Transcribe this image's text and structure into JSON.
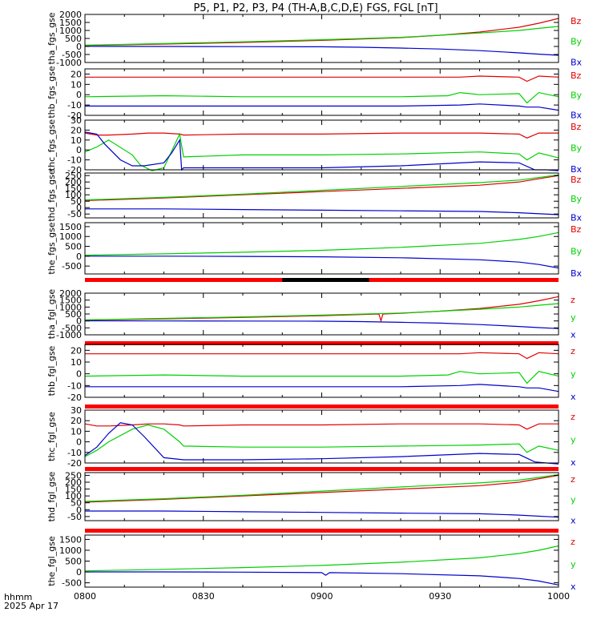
{
  "title": "P5, P1, P2, P3, P4 (TH-A,B,C,D,E) FGS, FGL [nT]",
  "x_axis": {
    "label_line1": "hhmm",
    "label_line2": "2025 Apr 17",
    "tick_labels": [
      "0800",
      "0830",
      "0900",
      "0930",
      "1000"
    ],
    "range_minutes": [
      0,
      120
    ]
  },
  "colors": {
    "z": "#e00000",
    "y": "#00d000",
    "x": "#0000cc",
    "flag": "#ff0000",
    "flag_dark": "#000000",
    "frame": "#000000"
  },
  "chart_data": [
    {
      "type": "line",
      "ylabel": "tha_fgs_gse",
      "ylim": [
        -1000,
        2000
      ],
      "yticks": [
        2000,
        1500,
        1000,
        500,
        0,
        -500,
        -1000
      ],
      "legend": [
        "Bz",
        "By",
        "Bx"
      ],
      "series": [
        {
          "name": "Bz",
          "x": [
            0,
            20,
            40,
            60,
            80,
            90,
            100,
            110,
            115,
            120
          ],
          "y": [
            60,
            150,
            250,
            380,
            550,
            700,
            900,
            1200,
            1450,
            1750
          ]
        },
        {
          "name": "By",
          "x": [
            0,
            20,
            40,
            60,
            80,
            90,
            100,
            110,
            115,
            120
          ],
          "y": [
            80,
            180,
            290,
            420,
            570,
            700,
            840,
            1000,
            1130,
            1250
          ]
        },
        {
          "name": "Bx",
          "x": [
            0,
            20,
            40,
            60,
            70,
            80,
            90,
            100,
            110,
            115,
            120
          ],
          "y": [
            10,
            0,
            -10,
            -20,
            -50,
            -100,
            -160,
            -260,
            -400,
            -480,
            -550
          ]
        }
      ]
    },
    {
      "type": "line",
      "ylabel": "thb_fgs_gse",
      "ylim": [
        -20,
        25
      ],
      "yticks": [
        20,
        10,
        0,
        -10,
        -20
      ],
      "legend": [
        "Bz",
        "By",
        "Bx"
      ],
      "series": [
        {
          "name": "Bz",
          "x": [
            0,
            20,
            40,
            60,
            80,
            95,
            100,
            110,
            112,
            115,
            120
          ],
          "y": [
            17,
            17,
            17,
            17,
            17,
            17,
            18,
            17,
            13,
            18,
            17
          ]
        },
        {
          "name": "By",
          "x": [
            0,
            20,
            40,
            60,
            80,
            92,
            95,
            100,
            110,
            112,
            115,
            120
          ],
          "y": [
            -2,
            -1,
            -2,
            -2,
            -2,
            -1,
            2,
            0,
            1,
            -8,
            2,
            -2
          ]
        },
        {
          "name": "Bx",
          "x": [
            0,
            20,
            40,
            60,
            80,
            95,
            100,
            110,
            112,
            115,
            120
          ],
          "y": [
            -11,
            -11,
            -11,
            -11,
            -11,
            -10,
            -9,
            -11,
            -12,
            -12,
            -15
          ]
        }
      ]
    },
    {
      "type": "line",
      "ylabel": "thc_fgs_gse",
      "ylim": [
        -20,
        30
      ],
      "yticks": [
        30,
        20,
        10,
        0,
        -10,
        -20
      ],
      "legend": [
        "Bz",
        "By",
        "Bx"
      ],
      "series": [
        {
          "name": "Bz",
          "x": [
            0,
            3,
            6,
            12,
            16,
            20,
            24,
            25,
            40,
            60,
            80,
            100,
            110,
            112,
            115,
            120
          ],
          "y": [
            17,
            15,
            15,
            16,
            17,
            17,
            16,
            15,
            16,
            16,
            17,
            17,
            16,
            12,
            17,
            17
          ]
        },
        {
          "name": "By",
          "x": [
            0,
            3,
            6,
            12,
            14,
            17,
            20,
            24,
            25,
            40,
            60,
            80,
            100,
            110,
            112,
            115,
            120
          ],
          "y": [
            -2,
            3,
            10,
            -5,
            -15,
            -21,
            -18,
            16,
            -7,
            -5,
            -5,
            -4,
            -2,
            -4,
            -10,
            -3,
            -8
          ]
        },
        {
          "name": "Bx",
          "x": [
            0,
            3,
            5,
            9,
            12,
            15,
            20,
            22,
            24,
            24.5,
            25,
            40,
            60,
            80,
            100,
            110,
            114,
            117,
            120
          ],
          "y": [
            18,
            16,
            6,
            -10,
            -16,
            -16,
            -13,
            -3,
            10,
            -20,
            -18,
            -18,
            -18,
            -16,
            -12,
            -13,
            -20,
            -20,
            -21
          ]
        }
      ]
    },
    {
      "type": "line",
      "ylabel": "thd_fgs_gse",
      "ylim": [
        -80,
        270
      ],
      "yticks": [
        250,
        200,
        150,
        100,
        50,
        0,
        -50
      ],
      "legend": [
        "Bz",
        "By",
        "Bx"
      ],
      "series": [
        {
          "name": "Bz",
          "x": [
            0,
            20,
            40,
            60,
            80,
            100,
            110,
            120
          ],
          "y": [
            55,
            75,
            100,
            125,
            150,
            175,
            200,
            250
          ]
        },
        {
          "name": "By",
          "x": [
            0,
            20,
            40,
            60,
            80,
            100,
            110,
            120
          ],
          "y": [
            60,
            80,
            105,
            135,
            165,
            195,
            215,
            255
          ]
        },
        {
          "name": "Bx",
          "x": [
            0,
            20,
            40,
            60,
            80,
            100,
            110,
            120
          ],
          "y": [
            -10,
            -10,
            -15,
            -20,
            -25,
            -30,
            -40,
            -55
          ]
        }
      ]
    },
    {
      "type": "line",
      "ylabel": "the_fgs_gse",
      "ylim": [
        -900,
        1700
      ],
      "yticks": [
        1500,
        1000,
        500,
        0,
        -500
      ],
      "legend": [
        "Bz",
        "By",
        "Bx"
      ],
      "series": [
        {
          "name": "By",
          "x": [
            0,
            20,
            40,
            60,
            80,
            100,
            110,
            115,
            120
          ],
          "y": [
            50,
            120,
            200,
            300,
            450,
            650,
            850,
            1000,
            1200
          ]
        },
        {
          "name": "Bx",
          "x": [
            0,
            20,
            40,
            60,
            80,
            100,
            110,
            115,
            120
          ],
          "y": [
            0,
            0,
            -10,
            -30,
            -80,
            -180,
            -300,
            -420,
            -600
          ]
        }
      ]
    },
    {
      "type": "line",
      "ylabel": "tha_fgl_gse",
      "ylim": [
        -1000,
        2000
      ],
      "yticks": [
        2000,
        1500,
        1000,
        500,
        0,
        -500,
        -1000
      ],
      "legend": [
        "z",
        "y",
        "x"
      ],
      "series": [
        {
          "name": "z",
          "x": [
            0,
            20,
            40,
            60,
            74.5,
            75,
            75.5,
            80,
            90,
            100,
            110,
            115,
            120
          ],
          "y": [
            60,
            150,
            250,
            380,
            500,
            0,
            500,
            550,
            700,
            900,
            1200,
            1450,
            1750
          ]
        },
        {
          "name": "y",
          "x": [
            0,
            20,
            40,
            60,
            80,
            90,
            100,
            110,
            115,
            120
          ],
          "y": [
            80,
            180,
            290,
            420,
            570,
            700,
            840,
            1000,
            1130,
            1250
          ]
        },
        {
          "name": "x",
          "x": [
            0,
            20,
            40,
            60,
            70,
            80,
            90,
            100,
            110,
            115,
            120
          ],
          "y": [
            10,
            0,
            -10,
            -20,
            -50,
            -100,
            -160,
            -260,
            -400,
            -480,
            -550
          ]
        }
      ]
    },
    {
      "type": "line",
      "ylabel": "thb_fgl_gse",
      "ylim": [
        -20,
        25
      ],
      "yticks": [
        20,
        10,
        0,
        -10,
        -20
      ],
      "legend": [
        "z",
        "y",
        "x"
      ],
      "series": [
        {
          "name": "z",
          "x": [
            0,
            20,
            40,
            60,
            80,
            95,
            100,
            110,
            112,
            115,
            120
          ],
          "y": [
            17,
            17,
            17,
            17,
            17,
            17,
            18,
            17,
            13,
            18,
            17
          ]
        },
        {
          "name": "y",
          "x": [
            0,
            20,
            40,
            60,
            80,
            92,
            95,
            100,
            110,
            112,
            115,
            120
          ],
          "y": [
            -2,
            -1,
            -2,
            -2,
            -2,
            -1,
            2,
            0,
            1,
            -8,
            2,
            -2
          ]
        },
        {
          "name": "x",
          "x": [
            0,
            20,
            40,
            60,
            80,
            95,
            100,
            110,
            112,
            115,
            120
          ],
          "y": [
            -11,
            -11,
            -11,
            -11,
            -11,
            -10,
            -9,
            -11,
            -12,
            -12,
            -15
          ]
        }
      ]
    },
    {
      "type": "line",
      "ylabel": "thc_fgl_gse",
      "ylim": [
        -20,
        30
      ],
      "yticks": [
        30,
        20,
        10,
        0,
        -10,
        -20
      ],
      "legend": [
        "z",
        "y",
        "x"
      ],
      "series": [
        {
          "name": "z",
          "x": [
            0,
            3,
            6,
            12,
            16,
            20,
            24,
            25,
            40,
            60,
            80,
            100,
            110,
            112,
            115,
            120
          ],
          "y": [
            17,
            15,
            15,
            16,
            17,
            17,
            16,
            15,
            16,
            16,
            17,
            17,
            16,
            12,
            17,
            17
          ]
        },
        {
          "name": "y",
          "x": [
            0,
            3,
            6,
            12,
            16,
            20,
            24,
            25,
            40,
            60,
            80,
            100,
            110,
            112,
            115,
            120
          ],
          "y": [
            -14,
            -8,
            0,
            12,
            16,
            12,
            0,
            -4,
            -5,
            -5,
            -4,
            -3,
            -2,
            -10,
            -4,
            -8
          ]
        },
        {
          "name": "x",
          "x": [
            0,
            3,
            6,
            9,
            12,
            15,
            20,
            25,
            40,
            60,
            80,
            100,
            110,
            114,
            117,
            120
          ],
          "y": [
            -13,
            -5,
            8,
            18,
            16,
            5,
            -15,
            -17,
            -17,
            -16,
            -14,
            -11,
            -12,
            -19,
            -20,
            -21
          ]
        }
      ]
    },
    {
      "type": "line",
      "ylabel": "thd_fgl_gse",
      "ylim": [
        -80,
        270
      ],
      "yticks": [
        250,
        200,
        150,
        100,
        50,
        0,
        -50
      ],
      "legend": [
        "z",
        "y",
        "x"
      ],
      "series": [
        {
          "name": "z",
          "x": [
            0,
            20,
            40,
            60,
            80,
            100,
            110,
            120
          ],
          "y": [
            55,
            75,
            100,
            125,
            150,
            175,
            200,
            250
          ]
        },
        {
          "name": "y",
          "x": [
            0,
            20,
            40,
            60,
            80,
            100,
            110,
            120
          ],
          "y": [
            60,
            80,
            105,
            135,
            165,
            195,
            215,
            255
          ]
        },
        {
          "name": "x",
          "x": [
            0,
            20,
            40,
            60,
            80,
            100,
            110,
            120
          ],
          "y": [
            -10,
            -10,
            -15,
            -20,
            -25,
            -30,
            -40,
            -55
          ]
        }
      ]
    },
    {
      "type": "line",
      "ylabel": "the_fgl_gse",
      "ylim": [
        -700,
        1700
      ],
      "yticks": [
        1500,
        1000,
        500,
        0,
        -500
      ],
      "legend": [
        "z",
        "y",
        "x"
      ],
      "series": [
        {
          "name": "y",
          "x": [
            0,
            20,
            40,
            60,
            80,
            100,
            110,
            115,
            120
          ],
          "y": [
            50,
            120,
            200,
            300,
            450,
            650,
            850,
            1000,
            1200
          ]
        },
        {
          "name": "x",
          "x": [
            0,
            20,
            40,
            60,
            61,
            62,
            80,
            100,
            110,
            115,
            120
          ],
          "y": [
            0,
            0,
            -10,
            -30,
            -150,
            -30,
            -80,
            -180,
            -300,
            -420,
            -600
          ]
        }
      ]
    }
  ]
}
